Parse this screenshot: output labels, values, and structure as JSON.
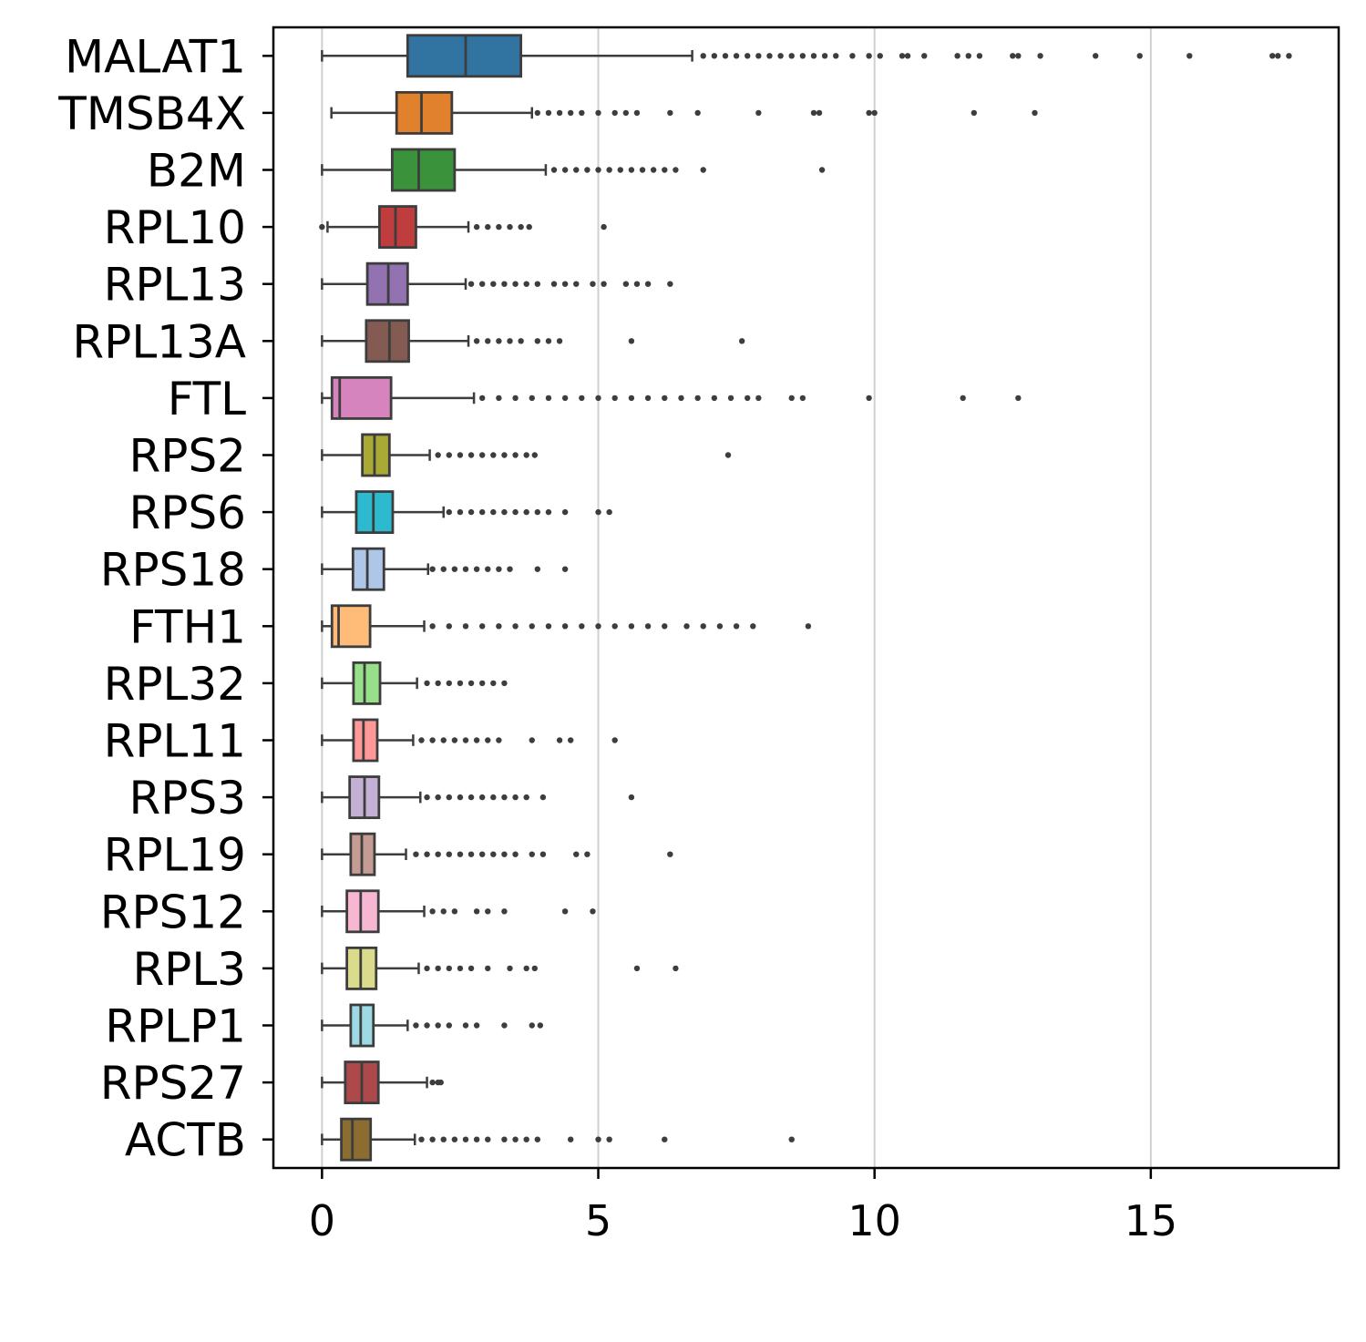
{
  "chart_data": {
    "type": "boxplot",
    "orientation": "horizontal",
    "xlim": [
      -0.88,
      18.4
    ],
    "xticks": [
      0,
      5,
      10,
      15
    ],
    "xtick_labels": [
      "0",
      "5",
      "10",
      "15"
    ],
    "grid": "x",
    "legend": "none",
    "categories": [
      "MALAT1",
      "TMSB4X",
      "B2M",
      "RPL10",
      "RPL13",
      "RPL13A",
      "FTL",
      "RPS2",
      "RPS6",
      "RPS18",
      "FTH1",
      "RPL32",
      "RPL11",
      "RPS3",
      "RPL19",
      "RPS12",
      "RPL3",
      "RPLP1",
      "RPS27",
      "ACTB"
    ],
    "boxes": [
      {
        "name": "MALAT1",
        "color": "#3274a1",
        "whisker_low": 0.0,
        "q1": 1.55,
        "median": 2.6,
        "q3": 3.6,
        "whisker_high": 6.7,
        "outliers": [
          6.9,
          7.1,
          7.3,
          7.5,
          7.7,
          7.9,
          8.1,
          8.3,
          8.5,
          8.7,
          8.9,
          9.1,
          9.3,
          9.6,
          9.9,
          10.1,
          10.5,
          10.6,
          10.9,
          11.5,
          11.7,
          11.9,
          12.5,
          12.6,
          13.0,
          14.0,
          14.8,
          15.7,
          17.2,
          17.3,
          17.5
        ]
      },
      {
        "name": "TMSB4X",
        "color": "#e1812c",
        "whisker_low": 0.17,
        "q1": 1.35,
        "median": 1.8,
        "q3": 2.35,
        "whisker_high": 3.8,
        "outliers": [
          3.9,
          4.1,
          4.3,
          4.5,
          4.7,
          5.0,
          5.3,
          5.5,
          5.7,
          6.3,
          6.8,
          7.9,
          8.9,
          9.0,
          9.9,
          10.0,
          11.8,
          12.9
        ]
      },
      {
        "name": "B2M",
        "color": "#3a923a",
        "whisker_low": 0.0,
        "q1": 1.27,
        "median": 1.75,
        "q3": 2.4,
        "whisker_high": 4.05,
        "outliers": [
          4.2,
          4.4,
          4.6,
          4.8,
          5.0,
          5.2,
          5.4,
          5.6,
          5.8,
          6.0,
          6.2,
          6.4,
          6.9,
          9.05
        ]
      },
      {
        "name": "RPL10",
        "color": "#c03d3e",
        "whisker_low": 0.1,
        "q1": 1.04,
        "median": 1.33,
        "q3": 1.7,
        "whisker_high": 2.65,
        "outliers": [
          0.0,
          2.8,
          3.0,
          3.2,
          3.4,
          3.6,
          3.75,
          5.1
        ]
      },
      {
        "name": "RPL13",
        "color": "#9372b2",
        "whisker_low": 0.0,
        "q1": 0.82,
        "median": 1.2,
        "q3": 1.55,
        "whisker_high": 2.6,
        "outliers": [
          2.7,
          2.9,
          3.1,
          3.3,
          3.5,
          3.7,
          3.9,
          4.2,
          4.4,
          4.6,
          4.9,
          5.1,
          5.5,
          5.7,
          5.9,
          6.3
        ]
      },
      {
        "name": "RPL13A",
        "color": "#845b53",
        "whisker_low": 0.0,
        "q1": 0.8,
        "median": 1.22,
        "q3": 1.57,
        "whisker_high": 2.65,
        "outliers": [
          2.8,
          3.0,
          3.2,
          3.4,
          3.6,
          3.9,
          4.1,
          4.3,
          5.6,
          7.6
        ]
      },
      {
        "name": "FTL",
        "color": "#d684bd",
        "whisker_low": 0.0,
        "q1": 0.18,
        "median": 0.32,
        "q3": 1.25,
        "whisker_high": 2.75,
        "outliers": [
          2.9,
          3.2,
          3.5,
          3.8,
          4.1,
          4.4,
          4.7,
          5.0,
          5.3,
          5.6,
          5.9,
          6.2,
          6.5,
          6.8,
          7.1,
          7.4,
          7.7,
          7.9,
          8.5,
          8.7,
          9.9,
          11.6,
          12.6
        ]
      },
      {
        "name": "RPS2",
        "color": "#a9aa35",
        "whisker_low": 0.0,
        "q1": 0.73,
        "median": 0.95,
        "q3": 1.22,
        "whisker_high": 1.95,
        "outliers": [
          2.1,
          2.3,
          2.5,
          2.7,
          2.9,
          3.1,
          3.3,
          3.5,
          3.7,
          3.85,
          7.35
        ]
      },
      {
        "name": "RPS6",
        "color": "#2ebace",
        "whisker_low": 0.0,
        "q1": 0.62,
        "median": 0.93,
        "q3": 1.28,
        "whisker_high": 2.2,
        "outliers": [
          2.3,
          2.5,
          2.7,
          2.9,
          3.1,
          3.3,
          3.5,
          3.7,
          3.9,
          4.1,
          4.4,
          5.0,
          5.2
        ]
      },
      {
        "name": "RPS18",
        "color": "#aec7e8",
        "whisker_low": 0.0,
        "q1": 0.56,
        "median": 0.82,
        "q3": 1.12,
        "whisker_high": 1.92,
        "outliers": [
          2.0,
          2.2,
          2.4,
          2.6,
          2.8,
          3.0,
          3.2,
          3.4,
          3.9,
          4.4
        ]
      },
      {
        "name": "FTH1",
        "color": "#ffbb78",
        "whisker_low": 0.0,
        "q1": 0.18,
        "median": 0.3,
        "q3": 0.87,
        "whisker_high": 1.85,
        "outliers": [
          2.0,
          2.3,
          2.6,
          2.9,
          3.2,
          3.5,
          3.8,
          4.1,
          4.4,
          4.7,
          5.0,
          5.3,
          5.6,
          5.9,
          6.2,
          6.6,
          6.9,
          7.2,
          7.5,
          7.8,
          8.8
        ]
      },
      {
        "name": "RPL32",
        "color": "#98df8a",
        "whisker_low": 0.0,
        "q1": 0.57,
        "median": 0.77,
        "q3": 1.05,
        "whisker_high": 1.72,
        "outliers": [
          1.9,
          2.1,
          2.3,
          2.5,
          2.7,
          2.9,
          3.1,
          3.3
        ]
      },
      {
        "name": "RPL11",
        "color": "#ff9896",
        "whisker_low": 0.0,
        "q1": 0.57,
        "median": 0.75,
        "q3": 1.0,
        "whisker_high": 1.65,
        "outliers": [
          1.8,
          2.0,
          2.2,
          2.4,
          2.6,
          2.8,
          3.0,
          3.2,
          3.8,
          4.3,
          4.5,
          5.3
        ]
      },
      {
        "name": "RPS3",
        "color": "#c5b0d5",
        "whisker_low": 0.0,
        "q1": 0.5,
        "median": 0.77,
        "q3": 1.03,
        "whisker_high": 1.78,
        "outliers": [
          1.9,
          2.1,
          2.3,
          2.5,
          2.7,
          2.9,
          3.1,
          3.3,
          3.5,
          3.7,
          4.0,
          5.6
        ]
      },
      {
        "name": "RPL19",
        "color": "#c49c94",
        "whisker_low": 0.0,
        "q1": 0.52,
        "median": 0.72,
        "q3": 0.95,
        "whisker_high": 1.52,
        "outliers": [
          1.7,
          1.9,
          2.1,
          2.3,
          2.5,
          2.7,
          2.9,
          3.1,
          3.3,
          3.5,
          3.8,
          4.0,
          4.6,
          4.8,
          6.3
        ]
      },
      {
        "name": "RPS12",
        "color": "#f7b6d2",
        "whisker_low": 0.0,
        "q1": 0.45,
        "median": 0.7,
        "q3": 1.02,
        "whisker_high": 1.85,
        "outliers": [
          2.0,
          2.2,
          2.4,
          2.8,
          3.0,
          3.3,
          4.4,
          4.9
        ]
      },
      {
        "name": "RPL3",
        "color": "#dbdb8d",
        "whisker_low": 0.0,
        "q1": 0.45,
        "median": 0.7,
        "q3": 0.98,
        "whisker_high": 1.75,
        "outliers": [
          1.9,
          2.1,
          2.3,
          2.5,
          2.7,
          3.0,
          3.4,
          3.7,
          3.85,
          5.7,
          6.4
        ]
      },
      {
        "name": "RPLP1",
        "color": "#9edae5",
        "whisker_low": 0.0,
        "q1": 0.52,
        "median": 0.7,
        "q3": 0.93,
        "whisker_high": 1.55,
        "outliers": [
          1.7,
          1.9,
          2.1,
          2.3,
          2.6,
          2.8,
          3.3,
          3.8,
          3.95
        ]
      },
      {
        "name": "RPS27",
        "color": "#ad494a",
        "whisker_low": 0.0,
        "q1": 0.42,
        "median": 0.72,
        "q3": 1.02,
        "whisker_high": 1.9,
        "outliers": [
          2.0,
          2.1,
          2.15
        ]
      },
      {
        "name": "ACTB",
        "color": "#8c6d31",
        "whisker_low": 0.0,
        "q1": 0.35,
        "median": 0.55,
        "q3": 0.88,
        "whisker_high": 1.68,
        "outliers": [
          1.8,
          2.0,
          2.2,
          2.4,
          2.6,
          2.8,
          3.0,
          3.3,
          3.5,
          3.7,
          3.9,
          4.5,
          5.0,
          5.2,
          6.2,
          8.5
        ]
      }
    ]
  }
}
